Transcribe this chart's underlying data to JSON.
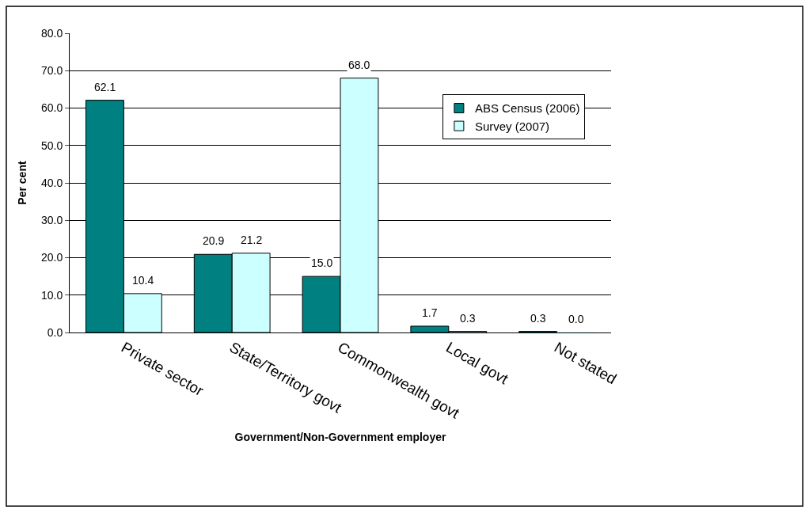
{
  "chart_data": {
    "type": "bar",
    "xlabel": "Government/Non-Government employer",
    "ylabel": "Per cent",
    "categories": [
      "Private sector",
      "State/Territory govt",
      "Commonwealth govt",
      "Local govt",
      "Not stated"
    ],
    "series": [
      {
        "name": "ABS Census (2006)",
        "color": "#008080",
        "values": [
          62.1,
          20.9,
          15.0,
          1.7,
          0.3
        ],
        "value_labels": [
          "62.1",
          "20.9",
          "15.0",
          "1.7",
          "0.3"
        ]
      },
      {
        "name": "Survey (2007)",
        "color": "#ccffff",
        "values": [
          10.4,
          21.2,
          68.0,
          0.3,
          0.0
        ],
        "value_labels": [
          "10.4",
          "21.2",
          "68.0",
          "0.3",
          "0.0"
        ]
      }
    ],
    "ylim": [
      0,
      80
    ],
    "yticks": [
      {
        "value": 0,
        "label": "0.0"
      },
      {
        "value": 10,
        "label": "10.0"
      },
      {
        "value": 20,
        "label": "20.0"
      },
      {
        "value": 30,
        "label": "30.0"
      },
      {
        "value": 40,
        "label": "40.0"
      },
      {
        "value": 50,
        "label": "50.0"
      },
      {
        "value": 60,
        "label": "60.0"
      },
      {
        "value": 70,
        "label": "70.0"
      },
      {
        "value": 80,
        "label": "80.0"
      }
    ],
    "grid": "y",
    "legend": "right"
  }
}
